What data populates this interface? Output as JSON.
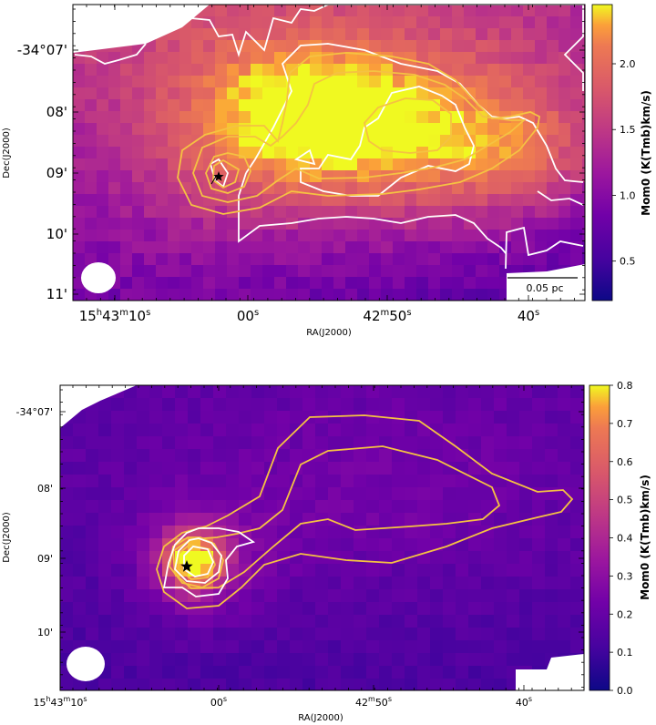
{
  "chart_data": [
    {
      "type": "heatmap",
      "xlabel": "RA(J2000)",
      "ylabel": "Dec(J2000)",
      "x_tick_labels": [
        {
          "value": 10,
          "label": "15h43m10s"
        },
        {
          "value": 0,
          "label": "00s"
        },
        {
          "value": -10,
          "label": "42m50s"
        },
        {
          "value": -20,
          "label": "40s"
        }
      ],
      "y_tick_labels": [
        {
          "value": 7,
          "label": "-34°07'"
        },
        {
          "value": 8,
          "label": "08'"
        },
        {
          "value": 9,
          "label": "09'"
        },
        {
          "value": 10,
          "label": "10'"
        },
        {
          "value": 11,
          "label": "11'"
        }
      ],
      "colorbar": {
        "label": "Mom0 (K(Tmb)km/s)",
        "colormap": "plasma",
        "range": [
          0.2,
          2.45
        ],
        "ticks": [
          "0.5",
          "1.0",
          "1.5",
          "2.0"
        ]
      },
      "scale_bar": "0.05 pc",
      "source_marker": "star",
      "contour_colors": {
        "white": "#ffffff",
        "yellow": "#f5c242"
      }
    },
    {
      "type": "heatmap",
      "xlabel": "RA(J2000)",
      "ylabel": "Dec(J2000)",
      "x_tick_labels": [
        {
          "value": 10,
          "label": "15h43m10s"
        },
        {
          "value": 0,
          "label": "00s"
        },
        {
          "value": -10,
          "label": "42m50s"
        },
        {
          "value": -20,
          "label": "40s"
        }
      ],
      "y_tick_labels": [
        {
          "value": 7,
          "label": "-34°07'"
        },
        {
          "value": 8,
          "label": "08'"
        },
        {
          "value": 9,
          "label": "09'"
        },
        {
          "value": 10,
          "label": "10'"
        }
      ],
      "colorbar": {
        "label": "Mom0 (K(Tmb)km/s)",
        "colormap": "plasma",
        "range": [
          0.0,
          0.8
        ],
        "ticks": [
          "0.0",
          "0.1",
          "0.2",
          "0.3",
          "0.4",
          "0.5",
          "0.6",
          "0.7",
          "0.8"
        ]
      },
      "source_marker": "star",
      "contour_colors": {
        "white": "#ffffff",
        "yellow": "#f5c242"
      }
    }
  ]
}
